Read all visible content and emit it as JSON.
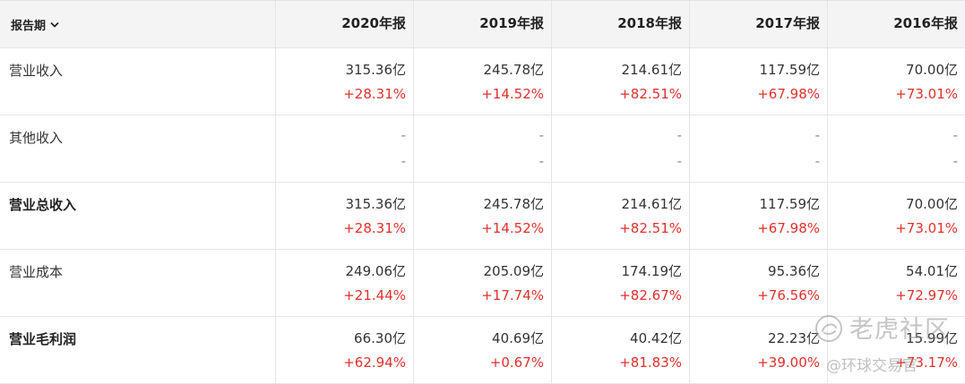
{
  "header": {
    "period_label": "报告期",
    "years": [
      "2020年报",
      "2019年报",
      "2018年报",
      "2017年报",
      "2016年报"
    ]
  },
  "rows": [
    {
      "label": "营业收入",
      "bold": false,
      "values": [
        "315.36亿",
        "245.78亿",
        "214.61亿",
        "117.59亿",
        "70.00亿"
      ],
      "changes": [
        "+28.31%",
        "+14.52%",
        "+82.51%",
        "+67.98%",
        "+73.01%"
      ]
    },
    {
      "label": "其他收入",
      "bold": false,
      "values": [
        "-",
        "-",
        "-",
        "-",
        "-"
      ],
      "changes": [
        "-",
        "-",
        "-",
        "-",
        "-"
      ]
    },
    {
      "label": "营业总收入",
      "bold": true,
      "values": [
        "315.36亿",
        "245.78亿",
        "214.61亿",
        "117.59亿",
        "70.00亿"
      ],
      "changes": [
        "+28.31%",
        "+14.52%",
        "+82.51%",
        "+67.98%",
        "+73.01%"
      ]
    },
    {
      "label": "营业成本",
      "bold": false,
      "values": [
        "249.06亿",
        "205.09亿",
        "174.19亿",
        "95.36亿",
        "54.01亿"
      ],
      "changes": [
        "+21.44%",
        "+17.74%",
        "+82.67%",
        "+76.56%",
        "+72.97%"
      ]
    },
    {
      "label": "营业毛利润",
      "bold": true,
      "values": [
        "66.30亿",
        "40.69亿",
        "40.42亿",
        "22.23亿",
        "15.99亿"
      ],
      "changes": [
        "+62.94%",
        "+0.67%",
        "+81.83%",
        "+39.00%",
        "+73.17%"
      ]
    }
  ],
  "colors": {
    "header_bg": "#f4f4f4",
    "border": "#e6e6e6",
    "text": "#333333",
    "change_positive": "#e0302b"
  },
  "watermark": {
    "name": "老虎社区",
    "handle": "@环球交易官"
  }
}
